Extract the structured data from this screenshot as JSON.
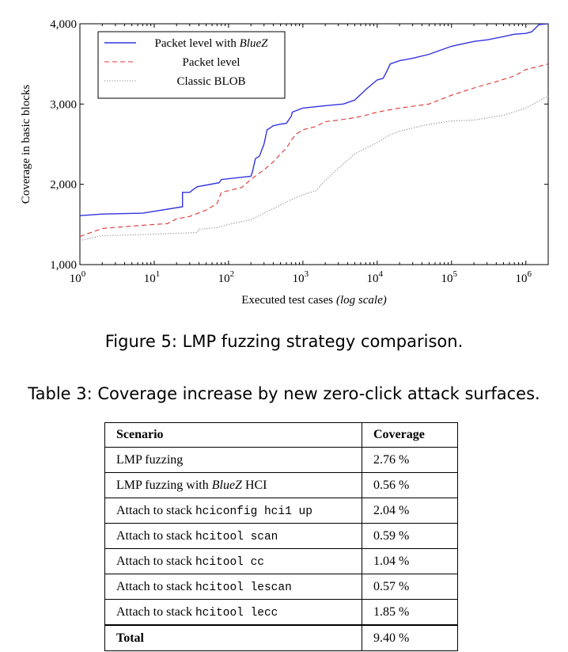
{
  "figure": {
    "caption": "Figure 5: LMP fuzzing strategy comparison.",
    "chart_data": {
      "type": "line",
      "x_scale": "log",
      "xlabel": "Executed test cases",
      "xlabel_suffix": "(log scale)",
      "ylabel": "Coverage in basic blocks",
      "xlim": [
        1,
        2000000
      ],
      "ylim": [
        1000,
        4000
      ],
      "xticks": [
        {
          "value": 1,
          "base": "10",
          "exp": "0"
        },
        {
          "value": 10,
          "base": "10",
          "exp": "1"
        },
        {
          "value": 100,
          "base": "10",
          "exp": "2"
        },
        {
          "value": 1000,
          "base": "10",
          "exp": "3"
        },
        {
          "value": 10000,
          "base": "10",
          "exp": "4"
        },
        {
          "value": 100000,
          "base": "10",
          "exp": "5"
        },
        {
          "value": 1000000,
          "base": "10",
          "exp": "6"
        }
      ],
      "yticks": [
        {
          "value": 1000,
          "label": "1,000"
        },
        {
          "value": 2000,
          "label": "2,000"
        },
        {
          "value": 3000,
          "label": "3,000"
        },
        {
          "value": 4000,
          "label": "4,000"
        }
      ],
      "legend_position": "top-left",
      "series": [
        {
          "name": "Packet level with BlueZ",
          "name_plain": "Packet level with ",
          "name_italic": "BlueZ",
          "color": "#3333dd",
          "dash": "solid",
          "x": [
            1,
            2,
            7,
            24,
            24,
            30,
            34,
            38,
            75,
            80,
            200,
            210,
            230,
            260,
            300,
            330,
            360,
            400,
            500,
            600,
            700,
            720,
            1000,
            2000,
            3500,
            5000,
            7000,
            10000,
            12000,
            13000,
            14000,
            15000,
            20000,
            30000,
            50000,
            100000,
            200000,
            300000,
            500000,
            700000,
            1000000,
            1200000,
            1500000,
            2000000
          ],
          "y": [
            1610,
            1630,
            1640,
            1720,
            1900,
            1900,
            1940,
            1970,
            2020,
            2060,
            2100,
            2160,
            2320,
            2350,
            2500,
            2680,
            2700,
            2730,
            2750,
            2760,
            2850,
            2900,
            2950,
            2980,
            3000,
            3050,
            3180,
            3300,
            3320,
            3380,
            3440,
            3500,
            3540,
            3570,
            3620,
            3720,
            3780,
            3800,
            3840,
            3870,
            3880,
            3900,
            3990,
            4000
          ]
        },
        {
          "name": "Packet level",
          "color": "#dd3333",
          "dash": "dashed",
          "x": [
            1,
            2,
            5,
            10,
            15,
            20,
            30,
            50,
            70,
            80,
            150,
            200,
            250,
            300,
            400,
            500,
            600,
            700,
            800,
            1000,
            1500,
            2000,
            3000,
            5000,
            7000,
            10000,
            20000,
            50000,
            100000,
            200000,
            400000,
            700000,
            1000000,
            2000000
          ],
          "y": [
            1350,
            1450,
            1480,
            1500,
            1510,
            1570,
            1600,
            1680,
            1760,
            1900,
            1960,
            2060,
            2130,
            2180,
            2280,
            2380,
            2450,
            2550,
            2620,
            2680,
            2720,
            2780,
            2800,
            2830,
            2860,
            2900,
            2950,
            3000,
            3110,
            3200,
            3280,
            3350,
            3430,
            3500
          ]
        },
        {
          "name": "Classic BLOB",
          "color": "#888888",
          "dash": "dotted",
          "x": [
            1,
            2,
            5,
            10,
            20,
            38,
            40,
            70,
            100,
            200,
            300,
            500,
            700,
            1000,
            1500,
            2000,
            3000,
            4000,
            5000,
            7000,
            10000,
            15000,
            20000,
            40000,
            60000,
            100000,
            200000,
            500000,
            1000000,
            2000000
          ],
          "y": [
            1300,
            1360,
            1370,
            1380,
            1390,
            1400,
            1440,
            1460,
            1500,
            1560,
            1640,
            1740,
            1810,
            1870,
            1920,
            2050,
            2200,
            2300,
            2380,
            2450,
            2520,
            2620,
            2660,
            2730,
            2760,
            2790,
            2800,
            2860,
            2950,
            3100
          ]
        }
      ]
    }
  },
  "table": {
    "caption": "Table 3: Coverage increase by new zero-click attack surfaces.",
    "header": {
      "scenario": "Scenario",
      "coverage": "Coverage"
    },
    "rows": [
      {
        "prefix": "LMP fuzzing",
        "italic": "",
        "suffix": "",
        "code": "",
        "coverage": "2.76 %"
      },
      {
        "prefix": "LMP fuzzing with ",
        "italic": "BlueZ",
        "suffix": " HCI",
        "code": "",
        "coverage": "0.56 %"
      },
      {
        "prefix": "Attach to stack ",
        "italic": "",
        "suffix": "",
        "code": "hciconfig hci1 up",
        "coverage": "2.04 %"
      },
      {
        "prefix": "Attach to stack ",
        "italic": "",
        "suffix": "",
        "code": "hcitool scan",
        "coverage": "0.59 %"
      },
      {
        "prefix": "Attach to stack ",
        "italic": "",
        "suffix": "",
        "code": "hcitool cc",
        "coverage": "1.04 %"
      },
      {
        "prefix": "Attach to stack ",
        "italic": "",
        "suffix": "",
        "code": "hcitool lescan",
        "coverage": "0.57 %"
      },
      {
        "prefix": "Attach to stack ",
        "italic": "",
        "suffix": "",
        "code": "hcitool lecc",
        "coverage": "1.85 %"
      }
    ],
    "total": {
      "label": "Total",
      "coverage": "9.40 %"
    }
  }
}
